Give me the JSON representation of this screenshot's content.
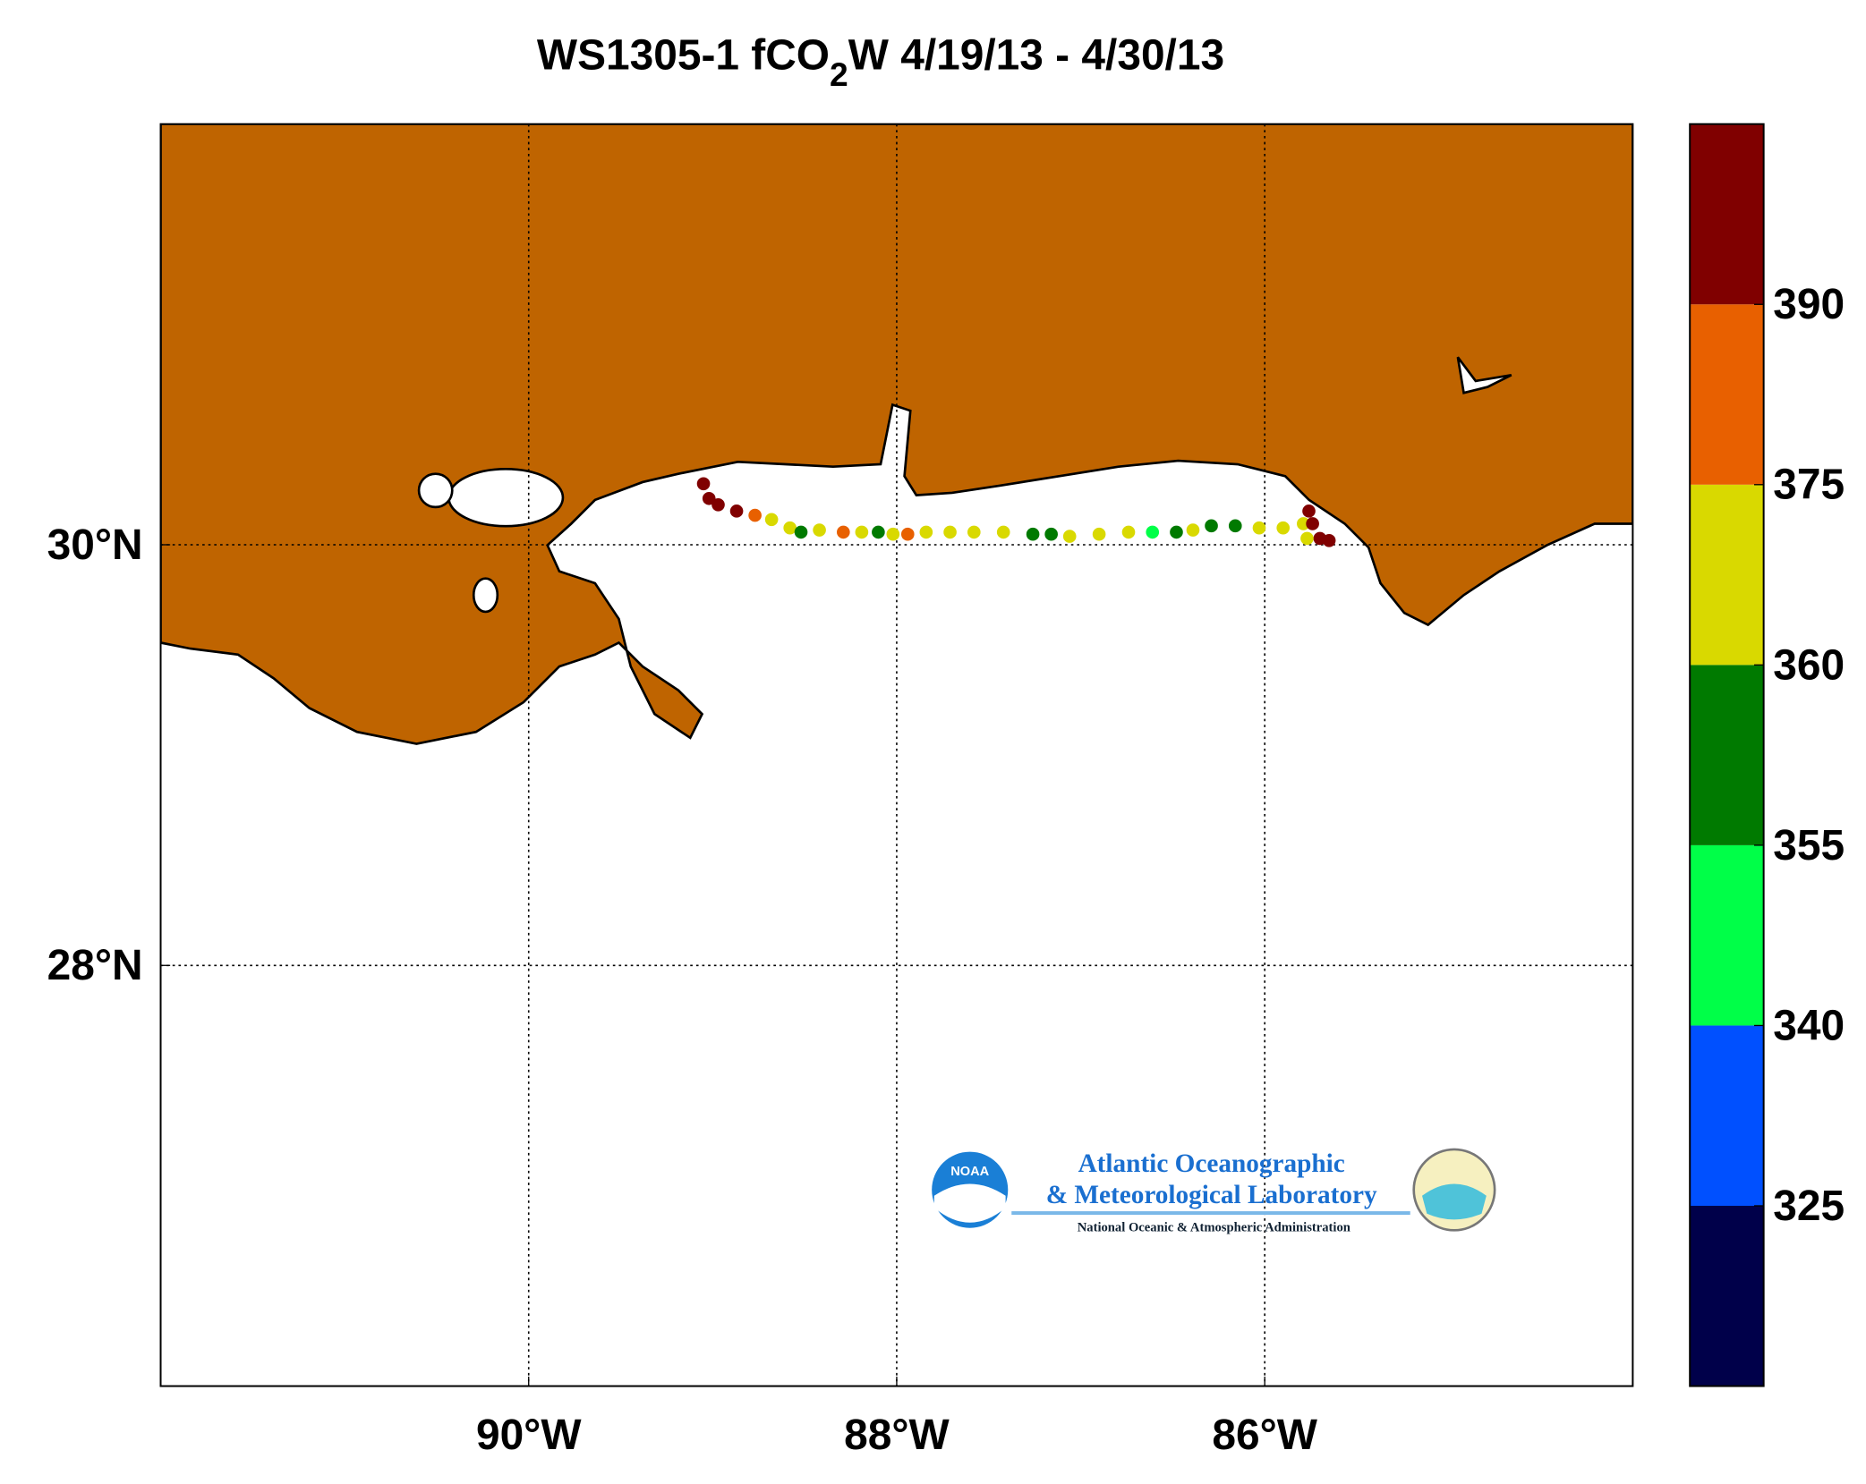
{
  "chart_data": {
    "type": "track-map",
    "title_parts": [
      "WS1305-1 fCO",
      "2",
      "W 4/19/13 - 4/30/13"
    ],
    "xlim": [
      -92,
      -84
    ],
    "ylim": [
      26,
      32
    ],
    "xticks": [
      {
        "value": -90,
        "label": "90°W"
      },
      {
        "value": -88,
        "label": "88°W"
      },
      {
        "value": -86,
        "label": "86°W"
      }
    ],
    "yticks": [
      {
        "value": 28,
        "label": "28°N"
      },
      {
        "value": 30,
        "label": "30°N"
      }
    ],
    "grid": true,
    "land_color": "#bf6400",
    "track": {
      "lon": [
        -89.05,
        -89.02,
        -88.97,
        -88.87,
        -88.77,
        -88.68,
        -88.58,
        -88.52,
        -88.42,
        -88.29,
        -88.19,
        -88.1,
        -88.02,
        -87.94,
        -87.84,
        -87.71,
        -87.58,
        -87.42,
        -87.26,
        -87.16,
        -87.06,
        -86.9,
        -86.74,
        -86.61,
        -86.48,
        -86.39,
        -86.29,
        -86.16,
        -86.03,
        -85.9,
        -85.79,
        -85.76,
        -85.74,
        -85.7,
        -85.65,
        -85.77
      ],
      "lat": [
        30.29,
        30.22,
        30.19,
        30.16,
        30.14,
        30.12,
        30.08,
        30.06,
        30.07,
        30.06,
        30.06,
        30.06,
        30.05,
        30.05,
        30.06,
        30.06,
        30.06,
        30.06,
        30.05,
        30.05,
        30.04,
        30.05,
        30.06,
        30.06,
        30.06,
        30.07,
        30.09,
        30.09,
        30.08,
        30.08,
        30.1,
        30.16,
        30.1,
        30.03,
        30.02,
        30.03
      ],
      "values": [
        395,
        395,
        395,
        395,
        380,
        365,
        365,
        357,
        365,
        380,
        365,
        357,
        365,
        380,
        365,
        365,
        365,
        365,
        357,
        357,
        365,
        365,
        365,
        348,
        357,
        365,
        357,
        357,
        365,
        365,
        365,
        395,
        395,
        395,
        395,
        365
      ]
    },
    "colorbar": {
      "ticks": [
        325,
        340,
        355,
        360,
        375,
        390
      ],
      "colors": [
        "#00004a",
        "#0050ff",
        "#00ff48",
        "#007a00",
        "#d9d900",
        "#e86000",
        "#800000"
      ]
    },
    "logo": {
      "badge": "NOAA",
      "line1": "Atlantic Oceanographic",
      "line2": "& Meteorological Laboratory",
      "line3": "National Oceanic & Atmospheric Administration"
    }
  }
}
